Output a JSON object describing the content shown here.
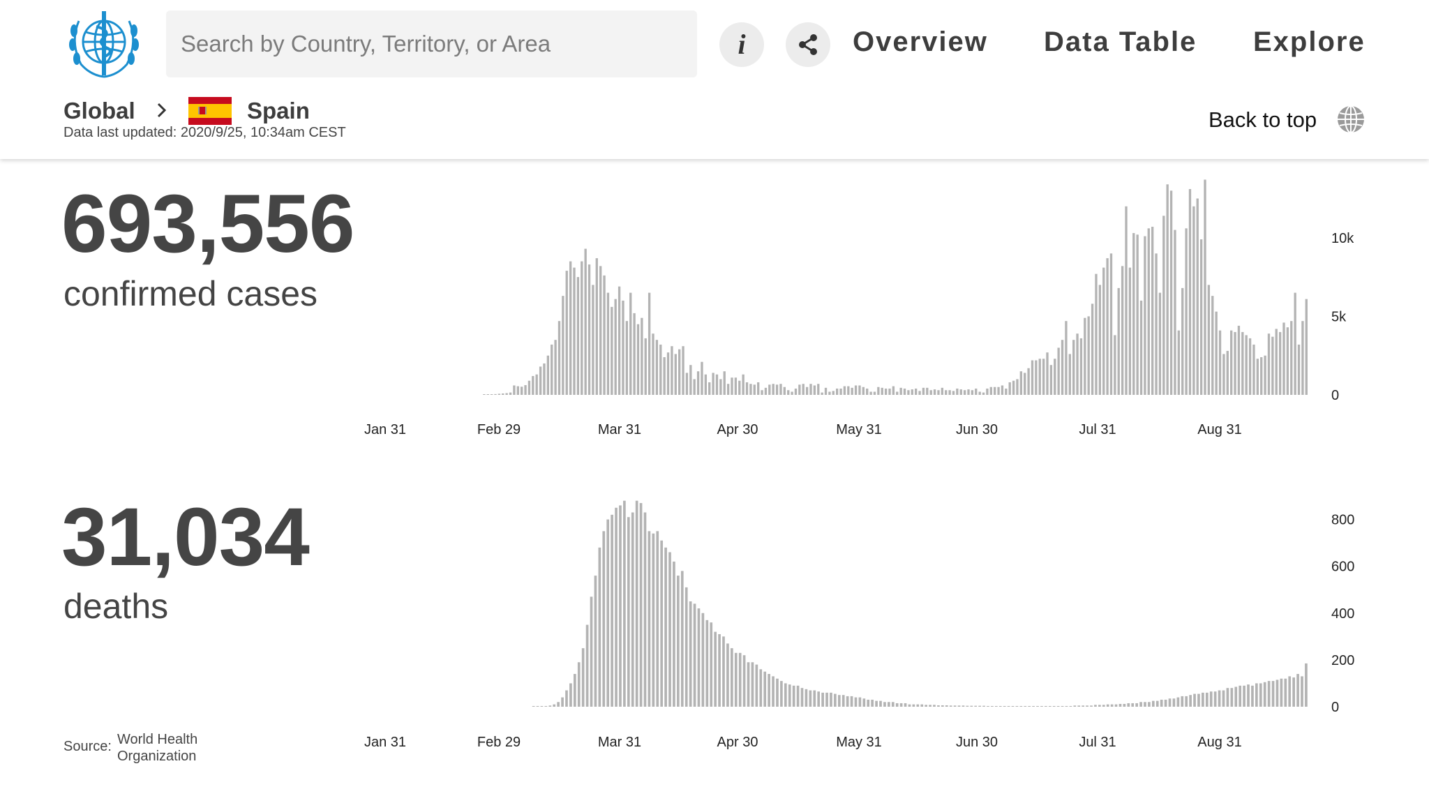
{
  "header": {
    "search_placeholder": "Search by Country, Territory, or Area",
    "nav": {
      "overview": "Overview",
      "data_table": "Data Table",
      "explore": "Explore"
    },
    "back_to_top": "Back to top"
  },
  "breadcrumb": {
    "global": "Global",
    "country": "Spain",
    "updated": "Data last updated: 2020/9/25, 10:34am CEST"
  },
  "summary": {
    "cases_value": "693,556",
    "cases_label": "confirmed cases",
    "deaths_value": "31,034",
    "deaths_label": "deaths"
  },
  "source": {
    "label": "Source:",
    "org": "World Health Organization"
  },
  "colors": {
    "bar": "#b3b3b3",
    "text": "#454545",
    "who_blue": "#1c8fcf",
    "flag_red": "#c60b1e",
    "flag_yellow": "#ffc400"
  },
  "chart_data": [
    {
      "type": "bar",
      "series": [
        {
          "values": [
            0,
            0,
            0,
            0,
            0,
            0,
            0,
            0,
            0,
            0,
            0,
            0,
            0,
            0,
            0,
            0,
            0,
            0,
            0,
            0,
            0,
            0,
            0,
            0,
            0,
            0,
            0,
            0,
            0,
            0,
            0,
            0,
            10,
            20,
            30,
            50,
            70,
            90,
            110,
            150,
            600,
            550,
            520,
            620,
            900,
            1200,
            1300,
            1800,
            2000,
            2500,
            3200,
            3500,
            4700,
            6300,
            7900,
            8500,
            8100,
            7500,
            8500,
            9300,
            8300,
            7000,
            8700,
            8200,
            7600,
            6500,
            5600,
            6100,
            6900,
            6000,
            4700,
            6500,
            5200,
            4500,
            4900,
            3600,
            6500,
            3900,
            3500,
            3200,
            2400,
            2700,
            3100,
            2600,
            2900,
            3100,
            1400,
            1900,
            1000,
            1500,
            2100,
            1300,
            800,
            1400,
            1300,
            1000,
            1500,
            700,
            1100,
            1100,
            900,
            1300,
            800,
            700,
            650,
            800,
            300,
            450,
            650,
            700,
            650,
            700,
            500,
            300,
            200,
            400,
            650,
            700,
            500,
            700,
            600,
            700,
            150,
            450,
            200,
            250,
            400,
            400,
            550,
            550,
            450,
            600,
            600,
            500,
            400,
            200,
            200,
            500,
            450,
            400,
            400,
            550,
            200,
            450,
            400,
            300,
            350,
            400,
            250,
            450,
            450,
            300,
            350,
            300,
            450,
            300,
            300,
            250,
            400,
            350,
            300,
            350,
            300,
            400,
            200,
            150,
            400,
            500,
            500,
            500,
            600,
            400,
            800,
            900,
            1000,
            1500,
            1400,
            1700,
            2200,
            2200,
            2300,
            2300,
            2700,
            1900,
            2300,
            3000,
            3500,
            4700,
            2600,
            3500,
            3900,
            3600,
            4900,
            5000,
            5800,
            7700,
            7000,
            8100,
            8700,
            9000,
            3800,
            6800,
            8200,
            12000,
            8100,
            10300,
            10200,
            6000,
            10100,
            10600,
            10700,
            9000,
            6500,
            11400,
            13400,
            13000,
            10500,
            4100,
            6800,
            10600,
            13100,
            12000,
            12500,
            9900,
            13700,
            7000,
            6300,
            5300,
            4100,
            2600,
            2800,
            4100,
            4000,
            4400,
            4000,
            3800,
            3600,
            3200,
            2300,
            2400,
            2500,
            3900,
            3700,
            4200,
            4000,
            4600,
            4300,
            4700,
            6500,
            3200,
            4700,
            6100
          ]
        }
      ],
      "y_ticks": [
        "0",
        "5k",
        "10k"
      ],
      "x_ticks": [
        "Jan 31",
        "Feb 29",
        "Mar 31",
        "Apr 30",
        "May 31",
        "Jun 30",
        "Jul 31",
        "Aug 31"
      ],
      "ylim": [
        0,
        13500
      ]
    },
    {
      "type": "bar",
      "series": [
        {
          "values": [
            0,
            0,
            0,
            0,
            0,
            0,
            0,
            0,
            0,
            0,
            0,
            0,
            0,
            0,
            0,
            0,
            0,
            0,
            0,
            0,
            0,
            0,
            0,
            0,
            0,
            0,
            0,
            0,
            0,
            0,
            0,
            0,
            0,
            0,
            0,
            0,
            0,
            0,
            0,
            0,
            0,
            1,
            1,
            2,
            3,
            5,
            10,
            20,
            40,
            70,
            100,
            140,
            190,
            250,
            350,
            470,
            560,
            680,
            750,
            800,
            820,
            850,
            860,
            880,
            810,
            830,
            880,
            870,
            830,
            750,
            740,
            750,
            710,
            680,
            660,
            620,
            560,
            580,
            510,
            450,
            440,
            420,
            400,
            370,
            360,
            320,
            310,
            300,
            270,
            250,
            230,
            230,
            220,
            190,
            190,
            180,
            160,
            150,
            140,
            130,
            120,
            110,
            100,
            95,
            90,
            90,
            80,
            75,
            70,
            70,
            65,
            60,
            60,
            60,
            55,
            50,
            50,
            45,
            45,
            40,
            40,
            35,
            30,
            30,
            25,
            25,
            20,
            20,
            20,
            15,
            15,
            15,
            10,
            10,
            10,
            10,
            8,
            8,
            8,
            6,
            6,
            6,
            5,
            5,
            5,
            5,
            4,
            4,
            4,
            4,
            4,
            3,
            3,
            3,
            3,
            3,
            3,
            3,
            3,
            3,
            3,
            3,
            3,
            3,
            3,
            3,
            3,
            3,
            3,
            3,
            3,
            3,
            5,
            5,
            5,
            5,
            5,
            8,
            8,
            8,
            10,
            10,
            10,
            12,
            12,
            15,
            15,
            15,
            20,
            20,
            20,
            25,
            25,
            30,
            30,
            35,
            35,
            40,
            45,
            45,
            50,
            55,
            55,
            60,
            60,
            65,
            65,
            70,
            70,
            80,
            80,
            85,
            90,
            90,
            95,
            90,
            100,
            100,
            105,
            110,
            110,
            115,
            120,
            120,
            130,
            125,
            140,
            130,
            185
          ]
        }
      ],
      "y_ticks": [
        "0",
        "200",
        "400",
        "600",
        "800"
      ],
      "x_ticks": [
        "Jan 31",
        "Feb 29",
        "Mar 31",
        "Apr 30",
        "May 31",
        "Jun 30",
        "Jul 31",
        "Aug 31"
      ],
      "ylim": [
        0,
        900
      ]
    }
  ]
}
